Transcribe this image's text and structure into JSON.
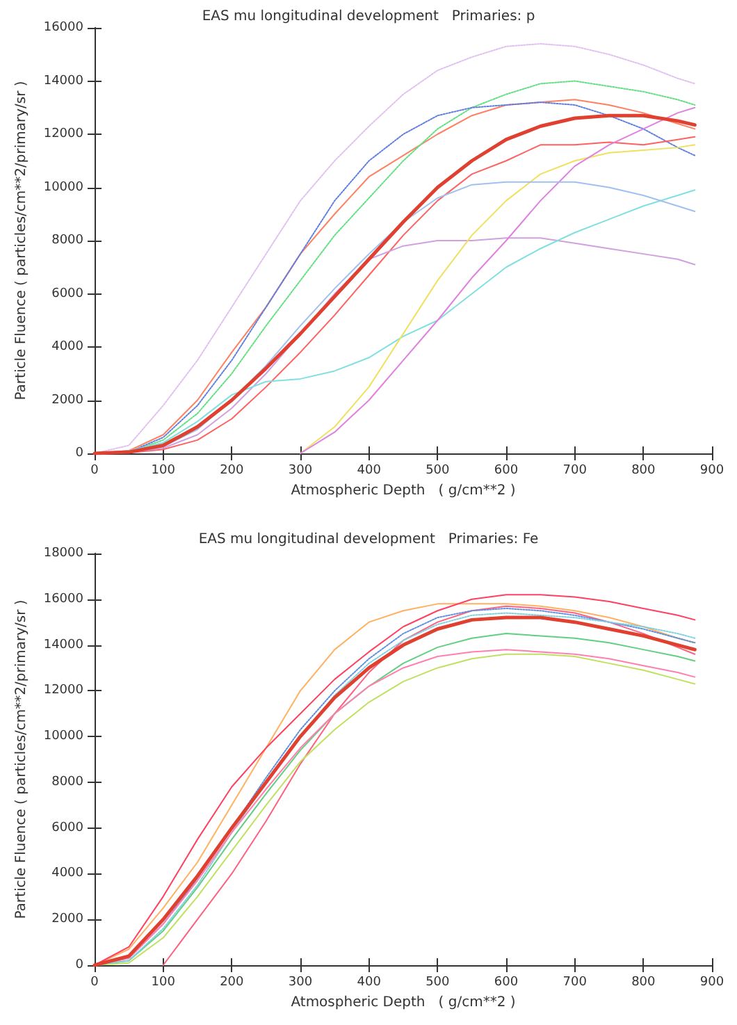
{
  "chart_data": [
    {
      "type": "line",
      "title": "EAS mu longitudinal development   Primaries: p",
      "xlabel": "Atmospheric Depth   ( g/cm**2 )",
      "ylabel": "Particle Fluence ( particles/cm**2/primary/sr )",
      "xlim": [
        0,
        900
      ],
      "xticks": [
        0,
        100,
        200,
        300,
        400,
        500,
        600,
        700,
        800,
        900
      ],
      "ylim": [
        0,
        16000
      ],
      "yticks": [
        0,
        2000,
        4000,
        6000,
        8000,
        10000,
        12000,
        14000,
        16000
      ],
      "grid": false,
      "marker": "none",
      "x": [
        0,
        50,
        100,
        150,
        200,
        250,
        300,
        350,
        400,
        450,
        500,
        550,
        600,
        650,
        700,
        750,
        800,
        850,
        875
      ],
      "series": [
        {
          "color": "#e04030",
          "line_style": "solid",
          "values": [
            0,
            50,
            300,
            1000,
            2000,
            3200,
            4500,
            5900,
            7300,
            8700,
            10000,
            11000,
            11800,
            12300,
            12600,
            12700,
            12700,
            12500,
            12350
          ]
        },
        {
          "color": "#e0c0f0",
          "line_style": "dotted",
          "values": [
            0,
            300,
            1800,
            3500,
            5500,
            7500,
            9500,
            11000,
            12300,
            13500,
            14400,
            14900,
            15300,
            15400,
            15300,
            15000,
            14600,
            14100,
            13900
          ]
        },
        {
          "color": "#ff8060",
          "line_style": "solid",
          "values": [
            0,
            100,
            700,
            2000,
            3800,
            5500,
            7500,
            9000,
            10400,
            11200,
            12000,
            12700,
            13100,
            13200,
            13300,
            13100,
            12800,
            12400,
            12200
          ]
        },
        {
          "color": "#60e080",
          "line_style": "dotted",
          "values": [
            0,
            50,
            500,
            1500,
            3000,
            4800,
            6500,
            8200,
            9600,
            11000,
            12200,
            13000,
            13500,
            13900,
            14000,
            13800,
            13600,
            13300,
            13100
          ]
        },
        {
          "color": "#6080e0",
          "line_style": "dotted",
          "values": [
            0,
            50,
            600,
            1800,
            3500,
            5500,
            7500,
            9500,
            11000,
            12000,
            12700,
            13000,
            13100,
            13200,
            13100,
            12700,
            12200,
            11500,
            11200
          ]
        },
        {
          "color": "#ff6060",
          "line_style": "solid",
          "values": [
            0,
            20,
            150,
            500,
            1300,
            2500,
            3800,
            5200,
            6700,
            8200,
            9500,
            10500,
            11000,
            11600,
            11600,
            11700,
            11600,
            11800,
            11900
          ]
        },
        {
          "color": "#d0a0e0",
          "line_style": "solid",
          "values": [
            0,
            30,
            200,
            700,
            1700,
            3000,
            4500,
            6000,
            7300,
            7800,
            8000,
            8000,
            8100,
            8100,
            7900,
            7700,
            7500,
            7300,
            7100
          ]
        },
        {
          "color": "#80e0e0",
          "line_style": "solid",
          "values": [
            0,
            100,
            400,
            1200,
            2200,
            2700,
            2800,
            3100,
            3600,
            4400,
            5000,
            6000,
            7000,
            7700,
            8300,
            8800,
            9300,
            9700,
            9900
          ]
        },
        {
          "color": "#f0e060",
          "line_style": "solid",
          "values": [
            null,
            null,
            null,
            null,
            null,
            null,
            0,
            1000,
            2500,
            4500,
            6500,
            8200,
            9500,
            10500,
            11000,
            11300,
            11400,
            11500,
            11600
          ]
        },
        {
          "color": "#e080e0",
          "line_style": "solid",
          "values": [
            null,
            null,
            null,
            null,
            null,
            null,
            0,
            800,
            2000,
            3500,
            5000,
            6600,
            8000,
            9500,
            10800,
            11600,
            12200,
            12800,
            13000
          ]
        },
        {
          "color": "#a0c0f0",
          "line_style": "solid",
          "values": [
            0,
            30,
            250,
            900,
            2000,
            3300,
            4800,
            6200,
            7500,
            8700,
            9600,
            10100,
            10200,
            10200,
            10200,
            10000,
            9700,
            9300,
            9100
          ]
        }
      ]
    },
    {
      "type": "line",
      "title": "EAS mu longitudinal development   Primaries: Fe",
      "xlabel": "Atmospheric Depth   ( g/cm**2 )",
      "ylabel": "Particle Fluence ( particles/cm**2/primary/sr )",
      "xlim": [
        0,
        900
      ],
      "xticks": [
        0,
        100,
        200,
        300,
        400,
        500,
        600,
        700,
        800,
        900
      ],
      "ylim": [
        0,
        18000
      ],
      "yticks": [
        0,
        2000,
        4000,
        6000,
        8000,
        10000,
        12000,
        14000,
        16000,
        18000
      ],
      "grid": false,
      "marker": "none",
      "x": [
        0,
        50,
        100,
        150,
        200,
        250,
        300,
        350,
        400,
        450,
        500,
        550,
        600,
        650,
        700,
        750,
        800,
        850,
        875
      ],
      "series": [
        {
          "color": "#e04030",
          "line_style": "solid",
          "values": [
            0,
            400,
            2000,
            3900,
            6000,
            8000,
            10000,
            11700,
            13000,
            14000,
            14700,
            15100,
            15200,
            15200,
            15000,
            14700,
            14400,
            14000,
            13800
          ]
        },
        {
          "color": "#ffb060",
          "line_style": "solid",
          "values": [
            0,
            700,
            2500,
            4500,
            7000,
            9500,
            12000,
            13800,
            15000,
            15500,
            15800,
            15800,
            15800,
            15700,
            15500,
            15200,
            14800,
            14300,
            14100
          ]
        },
        {
          "color": "#ff4060",
          "line_style": "solid",
          "values": [
            0,
            800,
            3000,
            5500,
            7800,
            9500,
            11000,
            12500,
            13700,
            14800,
            15500,
            16000,
            16200,
            16200,
            16100,
            15900,
            15600,
            15300,
            15100
          ]
        },
        {
          "color": "#ff6080",
          "line_style": "solid",
          "values": [
            null,
            null,
            0,
            2000,
            4000,
            6300,
            8800,
            11000,
            12800,
            14200,
            15000,
            15500,
            15700,
            15600,
            15400,
            15000,
            14500,
            13900,
            13600
          ]
        },
        {
          "color": "#60d080",
          "line_style": "solid",
          "values": [
            0,
            200,
            1500,
            3400,
            5500,
            7500,
            9400,
            11000,
            12200,
            13200,
            13900,
            14300,
            14500,
            14400,
            14300,
            14100,
            13800,
            13500,
            13300
          ]
        },
        {
          "color": "#c0e060",
          "line_style": "solid",
          "values": [
            0,
            100,
            1200,
            3000,
            5000,
            7000,
            8900,
            10300,
            11500,
            12400,
            13000,
            13400,
            13600,
            13600,
            13500,
            13200,
            12900,
            12500,
            12300
          ]
        },
        {
          "color": "#6090e0",
          "line_style": "dotted",
          "values": [
            0,
            300,
            1800,
            3800,
            6000,
            8200,
            10300,
            12000,
            13400,
            14500,
            15200,
            15500,
            15600,
            15500,
            15300,
            15000,
            14700,
            14300,
            14100
          ]
        },
        {
          "color": "#80d0e0",
          "line_style": "dotted",
          "values": [
            0,
            200,
            1600,
            3500,
            5800,
            8000,
            10000,
            11800,
            13200,
            14200,
            14900,
            15300,
            15400,
            15300,
            15200,
            15000,
            14800,
            14500,
            14300
          ]
        },
        {
          "color": "#ff80b0",
          "line_style": "solid",
          "values": [
            0,
            300,
            1800,
            3700,
            5800,
            7700,
            9500,
            11000,
            12200,
            13000,
            13500,
            13700,
            13800,
            13700,
            13600,
            13400,
            13100,
            12800,
            12600
          ]
        }
      ]
    }
  ]
}
